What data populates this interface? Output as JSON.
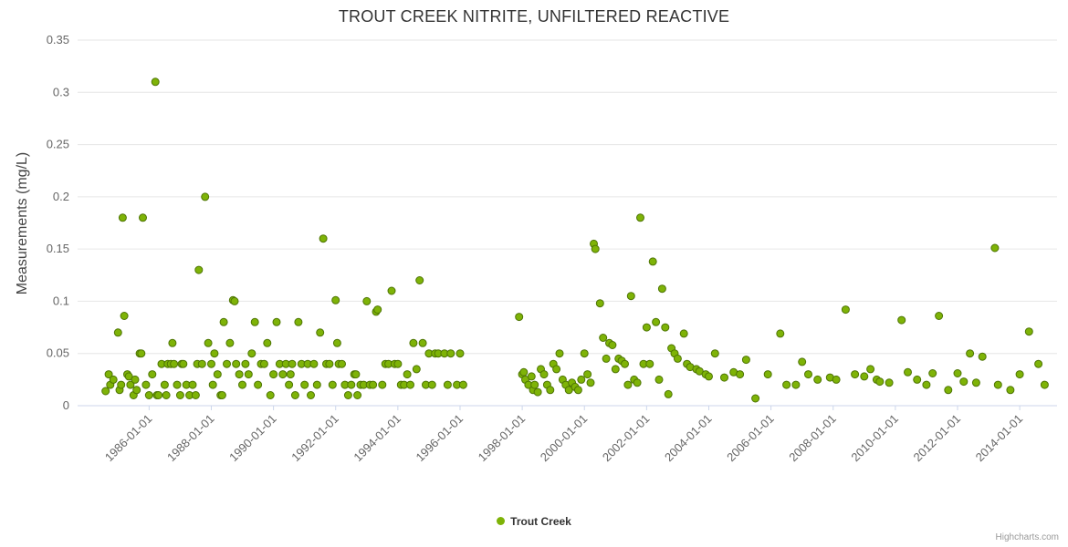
{
  "chart_data": {
    "type": "scatter",
    "title": "TROUT CREEK NITRITE, UNFILTERED REACTIVE",
    "ylabel": "Measurements (mg/L)",
    "xlabel": "",
    "credits": "Highcharts.com",
    "legend_position": "bottom-center",
    "grid": "horizontal",
    "ylim": [
      0,
      0.35
    ],
    "xlim": [
      1983.7,
      2015.2
    ],
    "y_ticks": [
      {
        "v": 0,
        "label": "0"
      },
      {
        "v": 0.05,
        "label": "0.05"
      },
      {
        "v": 0.1,
        "label": "0.1"
      },
      {
        "v": 0.15,
        "label": "0.15"
      },
      {
        "v": 0.2,
        "label": "0.2"
      },
      {
        "v": 0.25,
        "label": "0.25"
      },
      {
        "v": 0.3,
        "label": "0.3"
      },
      {
        "v": 0.35,
        "label": "0.35"
      }
    ],
    "x_ticks": [
      {
        "x": 1986,
        "label": "1986-01-01"
      },
      {
        "x": 1988,
        "label": "1988-01-01"
      },
      {
        "x": 1990,
        "label": "1990-01-01"
      },
      {
        "x": 1992,
        "label": "1992-01-01"
      },
      {
        "x": 1994,
        "label": "1994-01-01"
      },
      {
        "x": 1996,
        "label": "1996-01-01"
      },
      {
        "x": 1998,
        "label": "1998-01-01"
      },
      {
        "x": 2000,
        "label": "2000-01-01"
      },
      {
        "x": 2002,
        "label": "2002-01-01"
      },
      {
        "x": 2004,
        "label": "2004-01-01"
      },
      {
        "x": 2006,
        "label": "2006-01-01"
      },
      {
        "x": 2008,
        "label": "2008-01-01"
      },
      {
        "x": 2010,
        "label": "2010-01-01"
      },
      {
        "x": 2012,
        "label": "2012-01-01"
      },
      {
        "x": 2014,
        "label": "2014-01-01"
      }
    ],
    "colors": {
      "point_fill": "#7eb307",
      "point_stroke": "#4e7505",
      "grid": "#e6e6e6",
      "axis_line": "#ccd6eb",
      "tick_text": "#666666",
      "title_text": "#333333"
    },
    "series": [
      {
        "name": "Trout Creek",
        "points": [
          [
            1984.6,
            0.014
          ],
          [
            1984.7,
            0.03
          ],
          [
            1984.75,
            0.02
          ],
          [
            1984.85,
            0.025
          ],
          [
            1985.0,
            0.07
          ],
          [
            1985.05,
            0.015
          ],
          [
            1985.1,
            0.02
          ],
          [
            1985.15,
            0.18
          ],
          [
            1985.2,
            0.086
          ],
          [
            1985.3,
            0.03
          ],
          [
            1985.35,
            0.028
          ],
          [
            1985.4,
            0.02
          ],
          [
            1985.5,
            0.01
          ],
          [
            1985.55,
            0.025
          ],
          [
            1985.6,
            0.015
          ],
          [
            1985.7,
            0.05
          ],
          [
            1985.75,
            0.05
          ],
          [
            1985.8,
            0.18
          ],
          [
            1985.9,
            0.02
          ],
          [
            1986.0,
            0.01
          ],
          [
            1986.1,
            0.03
          ],
          [
            1986.2,
            0.31
          ],
          [
            1986.25,
            0.01
          ],
          [
            1986.3,
            0.01
          ],
          [
            1986.4,
            0.04
          ],
          [
            1986.5,
            0.02
          ],
          [
            1986.55,
            0.01
          ],
          [
            1986.6,
            0.04
          ],
          [
            1986.7,
            0.04
          ],
          [
            1986.75,
            0.06
          ],
          [
            1986.8,
            0.04
          ],
          [
            1986.9,
            0.02
          ],
          [
            1987.0,
            0.01
          ],
          [
            1987.05,
            0.04
          ],
          [
            1987.1,
            0.04
          ],
          [
            1987.2,
            0.02
          ],
          [
            1987.3,
            0.01
          ],
          [
            1987.4,
            0.02
          ],
          [
            1987.5,
            0.01
          ],
          [
            1987.55,
            0.04
          ],
          [
            1987.6,
            0.13
          ],
          [
            1987.7,
            0.04
          ],
          [
            1987.8,
            0.2
          ],
          [
            1987.9,
            0.06
          ],
          [
            1988.0,
            0.04
          ],
          [
            1988.05,
            0.02
          ],
          [
            1988.1,
            0.05
          ],
          [
            1988.2,
            0.03
          ],
          [
            1988.3,
            0.01
          ],
          [
            1988.35,
            0.01
          ],
          [
            1988.4,
            0.08
          ],
          [
            1988.5,
            0.04
          ],
          [
            1988.6,
            0.06
          ],
          [
            1988.7,
            0.101
          ],
          [
            1988.75,
            0.1
          ],
          [
            1988.8,
            0.04
          ],
          [
            1988.9,
            0.03
          ],
          [
            1989.0,
            0.02
          ],
          [
            1989.1,
            0.04
          ],
          [
            1989.2,
            0.03
          ],
          [
            1989.3,
            0.05
          ],
          [
            1989.4,
            0.08
          ],
          [
            1989.5,
            0.02
          ],
          [
            1989.6,
            0.04
          ],
          [
            1989.7,
            0.04
          ],
          [
            1989.8,
            0.06
          ],
          [
            1989.9,
            0.01
          ],
          [
            1990.0,
            0.03
          ],
          [
            1990.1,
            0.08
          ],
          [
            1990.2,
            0.04
          ],
          [
            1990.3,
            0.03
          ],
          [
            1990.4,
            0.04
          ],
          [
            1990.5,
            0.02
          ],
          [
            1990.55,
            0.03
          ],
          [
            1990.6,
            0.04
          ],
          [
            1990.7,
            0.01
          ],
          [
            1990.8,
            0.08
          ],
          [
            1990.9,
            0.04
          ],
          [
            1991.0,
            0.02
          ],
          [
            1991.1,
            0.04
          ],
          [
            1991.2,
            0.01
          ],
          [
            1991.3,
            0.04
          ],
          [
            1991.4,
            0.02
          ],
          [
            1991.5,
            0.07
          ],
          [
            1991.6,
            0.16
          ],
          [
            1991.7,
            0.04
          ],
          [
            1991.8,
            0.04
          ],
          [
            1991.9,
            0.02
          ],
          [
            1992.0,
            0.101
          ],
          [
            1992.05,
            0.06
          ],
          [
            1992.1,
            0.04
          ],
          [
            1992.2,
            0.04
          ],
          [
            1992.3,
            0.02
          ],
          [
            1992.4,
            0.01
          ],
          [
            1992.5,
            0.02
          ],
          [
            1992.6,
            0.03
          ],
          [
            1992.65,
            0.03
          ],
          [
            1992.7,
            0.01
          ],
          [
            1992.8,
            0.02
          ],
          [
            1992.9,
            0.02
          ],
          [
            1993.0,
            0.1
          ],
          [
            1993.1,
            0.02
          ],
          [
            1993.2,
            0.02
          ],
          [
            1993.3,
            0.09
          ],
          [
            1993.35,
            0.092
          ],
          [
            1993.5,
            0.02
          ],
          [
            1993.6,
            0.04
          ],
          [
            1993.7,
            0.04
          ],
          [
            1993.8,
            0.11
          ],
          [
            1993.9,
            0.04
          ],
          [
            1994.0,
            0.04
          ],
          [
            1994.1,
            0.02
          ],
          [
            1994.2,
            0.02
          ],
          [
            1994.3,
            0.03
          ],
          [
            1994.4,
            0.02
          ],
          [
            1994.5,
            0.06
          ],
          [
            1994.6,
            0.035
          ],
          [
            1994.7,
            0.12
          ],
          [
            1994.8,
            0.06
          ],
          [
            1994.9,
            0.02
          ],
          [
            1995.0,
            0.05
          ],
          [
            1995.1,
            0.02
          ],
          [
            1995.2,
            0.05
          ],
          [
            1995.3,
            0.05
          ],
          [
            1995.5,
            0.05
          ],
          [
            1995.6,
            0.02
          ],
          [
            1995.7,
            0.05
          ],
          [
            1995.9,
            0.02
          ],
          [
            1996.0,
            0.05
          ],
          [
            1996.1,
            0.02
          ],
          [
            1997.9,
            0.085
          ],
          [
            1998.0,
            0.03
          ],
          [
            1998.05,
            0.032
          ],
          [
            1998.1,
            0.025
          ],
          [
            1998.2,
            0.02
          ],
          [
            1998.3,
            0.028
          ],
          [
            1998.35,
            0.015
          ],
          [
            1998.4,
            0.02
          ],
          [
            1998.5,
            0.013
          ],
          [
            1998.6,
            0.035
          ],
          [
            1998.7,
            0.03
          ],
          [
            1998.8,
            0.02
          ],
          [
            1998.9,
            0.015
          ],
          [
            1999.0,
            0.04
          ],
          [
            1999.1,
            0.035
          ],
          [
            1999.2,
            0.05
          ],
          [
            1999.3,
            0.025
          ],
          [
            1999.4,
            0.02
          ],
          [
            1999.5,
            0.015
          ],
          [
            1999.6,
            0.022
          ],
          [
            1999.7,
            0.018
          ],
          [
            1999.8,
            0.015
          ],
          [
            1999.9,
            0.025
          ],
          [
            2000.0,
            0.05
          ],
          [
            2000.1,
            0.03
          ],
          [
            2000.2,
            0.022
          ],
          [
            2000.3,
            0.155
          ],
          [
            2000.35,
            0.15
          ],
          [
            2000.5,
            0.098
          ],
          [
            2000.6,
            0.065
          ],
          [
            2000.7,
            0.045
          ],
          [
            2000.8,
            0.06
          ],
          [
            2000.9,
            0.058
          ],
          [
            2001.0,
            0.035
          ],
          [
            2001.1,
            0.045
          ],
          [
            2001.2,
            0.043
          ],
          [
            2001.3,
            0.04
          ],
          [
            2001.4,
            0.02
          ],
          [
            2001.5,
            0.105
          ],
          [
            2001.6,
            0.025
          ],
          [
            2001.7,
            0.022
          ],
          [
            2001.8,
            0.18
          ],
          [
            2001.9,
            0.04
          ],
          [
            2002.0,
            0.075
          ],
          [
            2002.1,
            0.04
          ],
          [
            2002.2,
            0.138
          ],
          [
            2002.3,
            0.08
          ],
          [
            2002.4,
            0.025
          ],
          [
            2002.5,
            0.112
          ],
          [
            2002.6,
            0.075
          ],
          [
            2002.7,
            0.011
          ],
          [
            2002.8,
            0.055
          ],
          [
            2002.9,
            0.05
          ],
          [
            2003.0,
            0.045
          ],
          [
            2003.2,
            0.069
          ],
          [
            2003.3,
            0.04
          ],
          [
            2003.4,
            0.037
          ],
          [
            2003.6,
            0.035
          ],
          [
            2003.7,
            0.033
          ],
          [
            2003.9,
            0.03
          ],
          [
            2004.0,
            0.028
          ],
          [
            2004.2,
            0.05
          ],
          [
            2004.5,
            0.027
          ],
          [
            2004.8,
            0.032
          ],
          [
            2005.0,
            0.03
          ],
          [
            2005.2,
            0.044
          ],
          [
            2005.5,
            0.007
          ],
          [
            2005.9,
            0.03
          ],
          [
            2006.3,
            0.069
          ],
          [
            2006.5,
            0.02
          ],
          [
            2006.8,
            0.02
          ],
          [
            2007.0,
            0.042
          ],
          [
            2007.2,
            0.03
          ],
          [
            2007.5,
            0.025
          ],
          [
            2007.9,
            0.027
          ],
          [
            2008.1,
            0.025
          ],
          [
            2008.4,
            0.092
          ],
          [
            2008.7,
            0.03
          ],
          [
            2009.0,
            0.028
          ],
          [
            2009.2,
            0.035
          ],
          [
            2009.4,
            0.025
          ],
          [
            2009.5,
            0.023
          ],
          [
            2009.8,
            0.022
          ],
          [
            2010.2,
            0.082
          ],
          [
            2010.4,
            0.032
          ],
          [
            2010.7,
            0.025
          ],
          [
            2011.0,
            0.02
          ],
          [
            2011.2,
            0.031
          ],
          [
            2011.4,
            0.086
          ],
          [
            2011.7,
            0.015
          ],
          [
            2012.0,
            0.031
          ],
          [
            2012.2,
            0.023
          ],
          [
            2012.4,
            0.05
          ],
          [
            2012.6,
            0.022
          ],
          [
            2012.8,
            0.047
          ],
          [
            2013.2,
            0.151
          ],
          [
            2013.3,
            0.02
          ],
          [
            2013.7,
            0.015
          ],
          [
            2014.0,
            0.03
          ],
          [
            2014.3,
            0.071
          ],
          [
            2014.6,
            0.04
          ],
          [
            2014.8,
            0.02
          ]
        ]
      }
    ]
  }
}
